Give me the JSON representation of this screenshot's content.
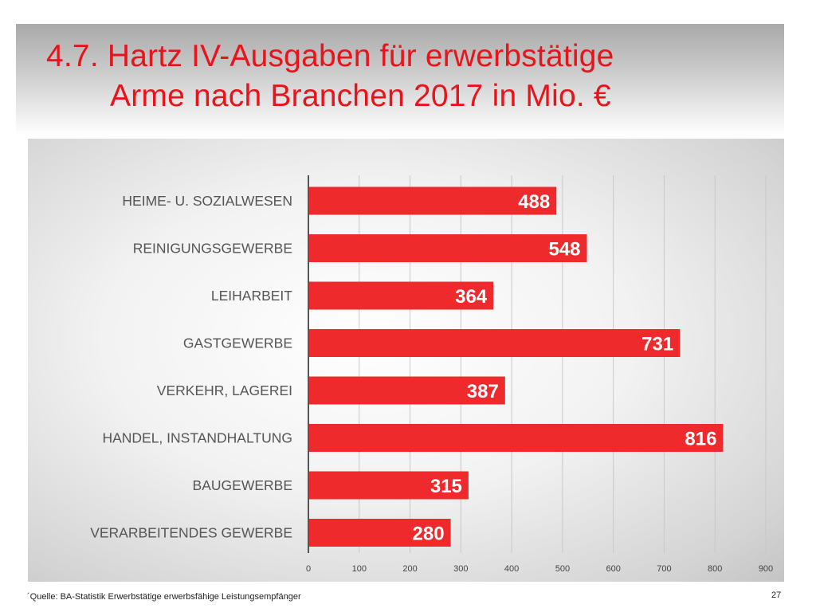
{
  "slide": {
    "title_line1": "4.7. Hartz IV-Ausgaben für erwerbstätige",
    "title_line2": "Arme nach Branchen 2017 in Mio. €",
    "source": "´Quelle: BA-Statistik Erwerbstätige erwerbsfähige Leistungsempfänger",
    "page_number": "27"
  },
  "colors": {
    "bar": "#ee2a2d",
    "title": "#e8141b"
  },
  "chart_data": {
    "type": "bar",
    "orientation": "horizontal",
    "categories": [
      "HEIME- U. SOZIALWESEN",
      "REINIGUNGSGEWERBE",
      "LEIHARBEIT",
      "GASTGEWERBE",
      "VERKEHR, LAGEREI",
      "HANDEL, INSTANDHALTUNG",
      "BAUGEWERBE",
      "VERARBEITENDES GEWERBE"
    ],
    "values": [
      488,
      548,
      364,
      731,
      387,
      816,
      315,
      280
    ],
    "value_labels": [
      "488",
      "548",
      "364",
      "731",
      "387",
      "816",
      "315",
      "280"
    ],
    "xlim": [
      0,
      900
    ],
    "xticks": [
      "0",
      "100",
      "200",
      "300",
      "400",
      "500",
      "600",
      "700",
      "800",
      "900"
    ],
    "grid": "vertical",
    "legend": "none"
  }
}
